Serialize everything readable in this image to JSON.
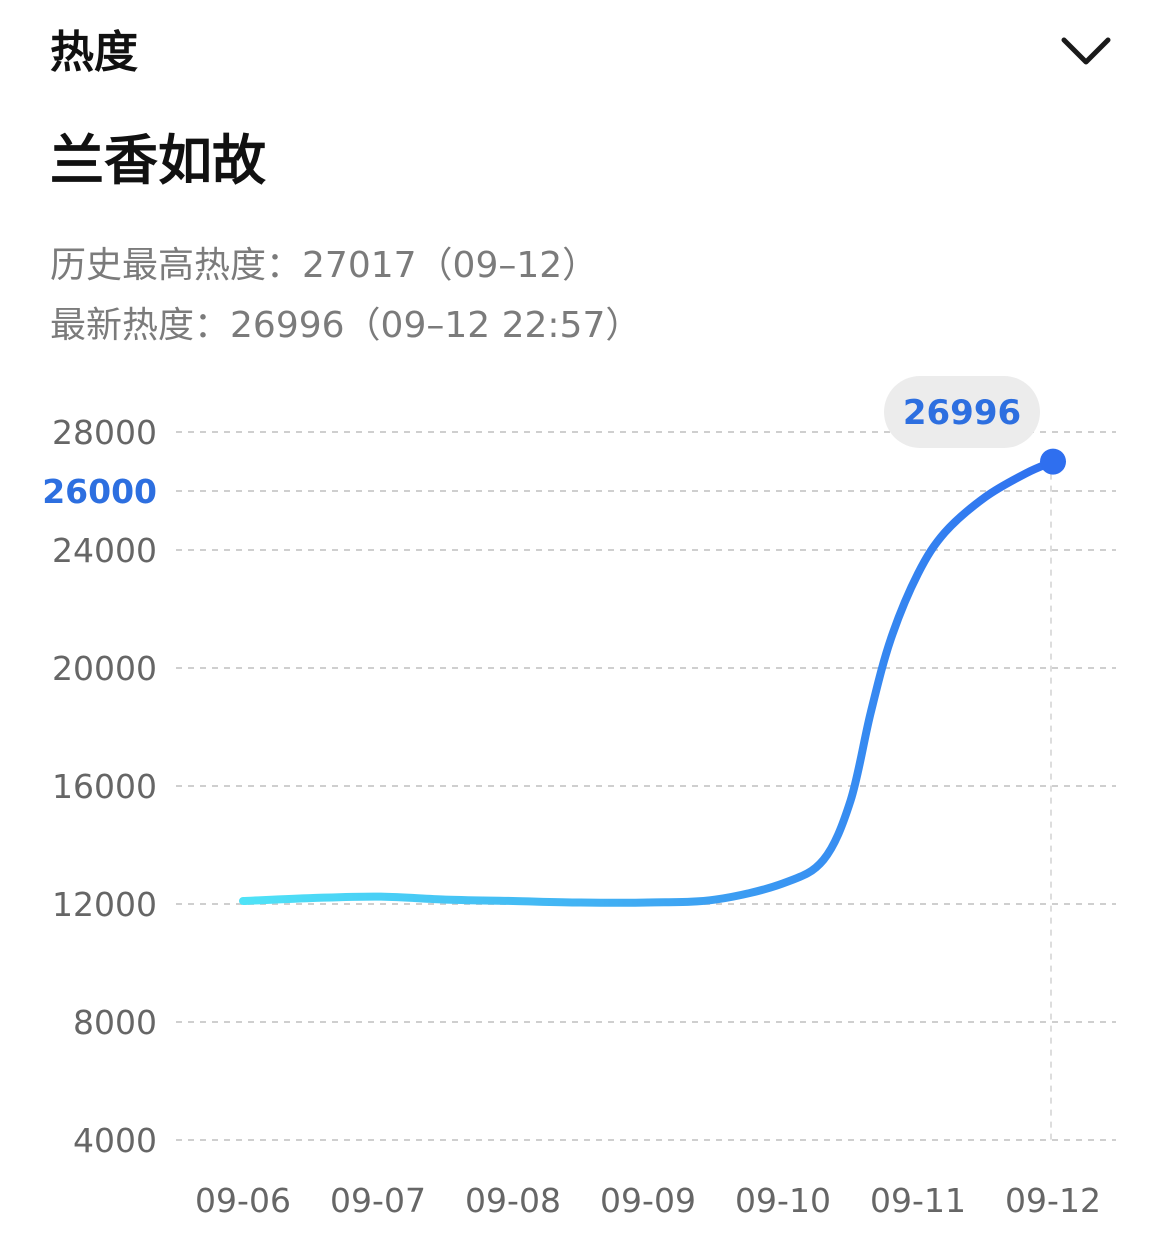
{
  "header": {
    "section_title": "热度",
    "collapse_icon": "chevron-down-icon"
  },
  "topic": {
    "title": "兰香如故"
  },
  "stats": {
    "peak_label": "历史最高热度：",
    "peak_value": "27017",
    "peak_date": "（09–12）",
    "latest_label": "最新热度：",
    "latest_value": "26996",
    "latest_time": "（09–12 22:57）"
  },
  "tooltip": {
    "value": "26996"
  },
  "colors": {
    "line_start": "#4fe3f7",
    "line_end": "#2f6fef",
    "highlight": "#2d6fe0",
    "tooltip_bg": "#ececec",
    "grid": "#cfcfcf"
  },
  "chart_data": {
    "type": "line",
    "categories": [
      "09-06",
      "09-07",
      "09-08",
      "09-09",
      "09-10",
      "09-11",
      "09-12"
    ],
    "y_ticks": [
      4000,
      8000,
      12000,
      16000,
      20000,
      24000,
      26000,
      28000
    ],
    "highlighted_tick": 26000,
    "ylim": [
      4000,
      28000
    ],
    "grid": true,
    "series": [
      {
        "x": [
          0,
          0.5,
          1,
          1.5,
          2,
          2.5,
          3,
          3.5,
          4,
          4.3,
          4.5,
          4.65,
          4.8,
          5.0,
          5.2,
          5.5,
          5.8,
          6
        ],
        "values": [
          12100,
          12200,
          12250,
          12150,
          12100,
          12050,
          12050,
          12150,
          12700,
          13500,
          15500,
          18500,
          21000,
          23200,
          24600,
          25800,
          26600,
          26996
        ]
      }
    ],
    "last_point_value": 26996
  }
}
